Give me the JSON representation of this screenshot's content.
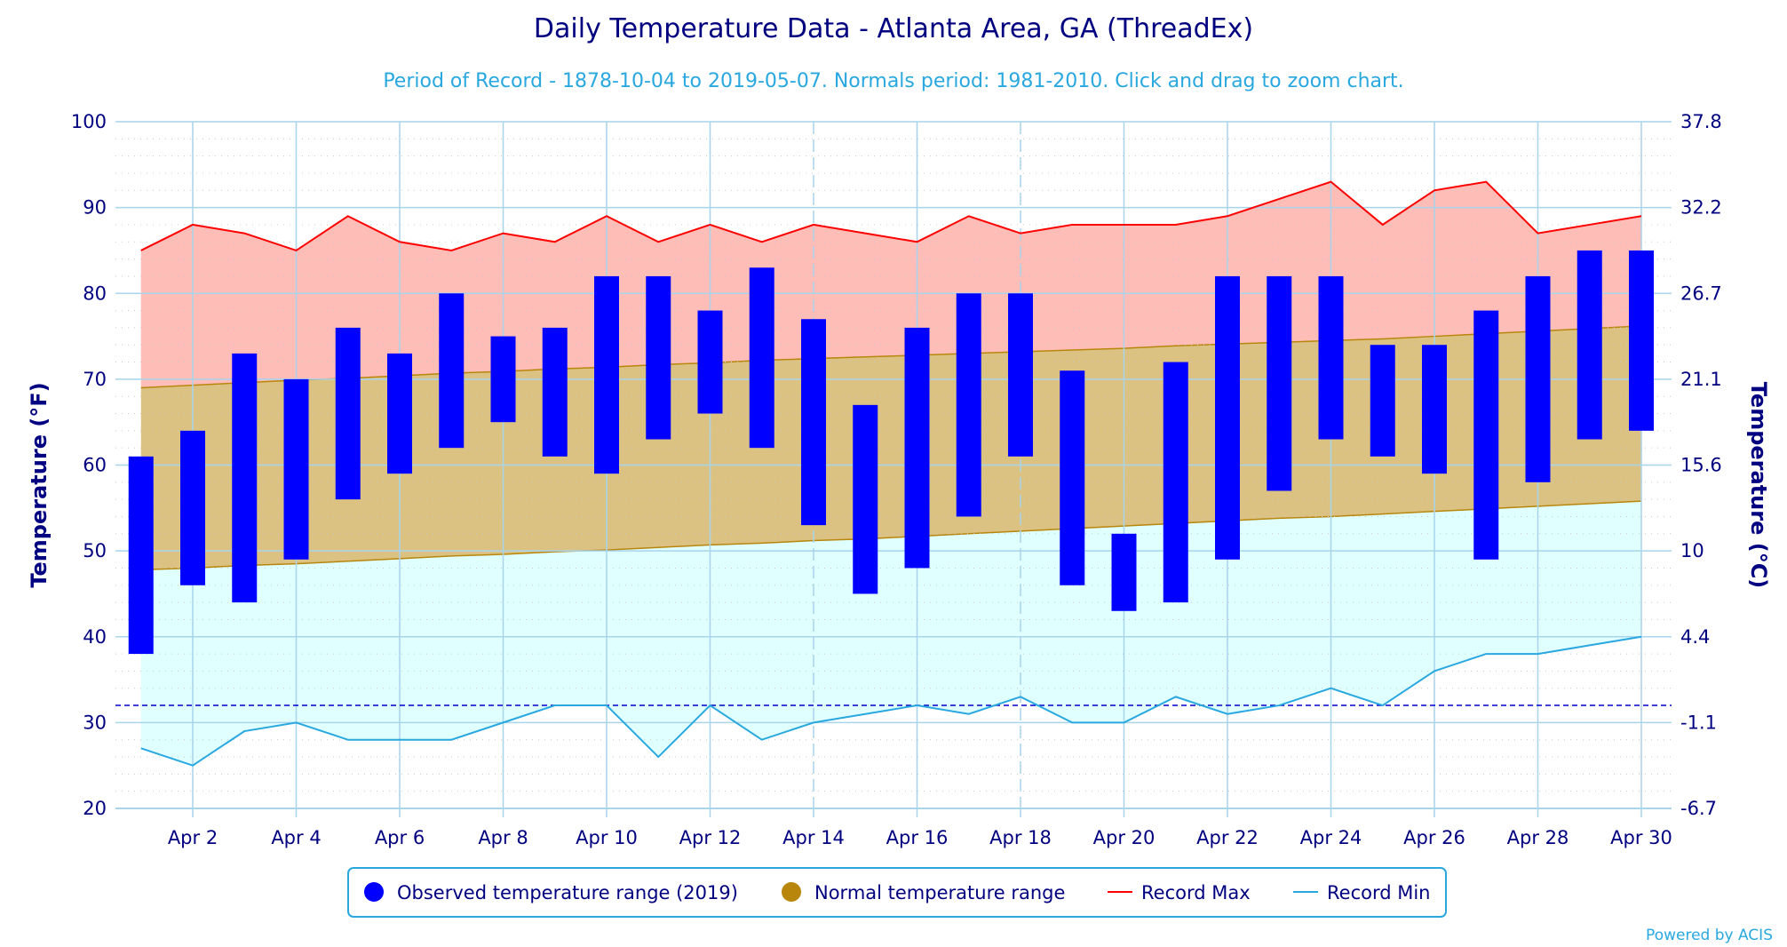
{
  "chart_data": {
    "type": "bar",
    "title": "Daily Temperature Data - Atlanta Area, GA (ThreadEx)",
    "subtitle": "Period of Record - 1878-10-04 to 2019-05-07. Normals period: 1981-2010. Click and drag to zoom chart.",
    "ylabel_left": "Temperature (°F)",
    "ylabel_right": "Temperature (°C)",
    "ylim": [
      20,
      100
    ],
    "xlim": [
      1,
      30
    ],
    "freezing_line": 32,
    "y_ticks_f": [
      20,
      30,
      40,
      50,
      60,
      70,
      80,
      90,
      100
    ],
    "y_ticks_c": [
      "-6.7",
      "-1.1",
      "4.4",
      "10",
      "15.6",
      "21.1",
      "26.7",
      "32.2",
      "37.8"
    ],
    "x_ticks": [
      {
        "day": 2,
        "label": "Apr 2"
      },
      {
        "day": 4,
        "label": "Apr 4"
      },
      {
        "day": 6,
        "label": "Apr 6"
      },
      {
        "day": 8,
        "label": "Apr 8"
      },
      {
        "day": 10,
        "label": "Apr 10"
      },
      {
        "day": 12,
        "label": "Apr 12"
      },
      {
        "day": 14,
        "label": "Apr 14"
      },
      {
        "day": 16,
        "label": "Apr 16"
      },
      {
        "day": 18,
        "label": "Apr 18"
      },
      {
        "day": 20,
        "label": "Apr 20"
      },
      {
        "day": 22,
        "label": "Apr 22"
      },
      {
        "day": 24,
        "label": "Apr 24"
      },
      {
        "day": 26,
        "label": "Apr 26"
      },
      {
        "day": 28,
        "label": "Apr 28"
      },
      {
        "day": 30,
        "label": "Apr 30"
      }
    ],
    "days": [
      1,
      2,
      3,
      4,
      5,
      6,
      7,
      8,
      9,
      10,
      11,
      12,
      13,
      14,
      15,
      16,
      17,
      18,
      19,
      20,
      21,
      22,
      23,
      24,
      25,
      26,
      27,
      28,
      29,
      30
    ],
    "observed": {
      "name": "Observed temperature range (2019)",
      "color": "#0000ff",
      "low": [
        38,
        46,
        44,
        49,
        56,
        59,
        62,
        65,
        61,
        59,
        63,
        66,
        62,
        53,
        45,
        48,
        54,
        61,
        46,
        43,
        44,
        49,
        57,
        63,
        61,
        59,
        49,
        58,
        63,
        64
      ],
      "high": [
        61,
        64,
        73,
        70,
        76,
        73,
        80,
        75,
        76,
        82,
        82,
        78,
        83,
        77,
        67,
        76,
        80,
        80,
        71,
        52,
        72,
        82,
        82,
        82,
        74,
        74,
        78,
        82,
        85,
        85
      ]
    },
    "normal": {
      "name": "Normal temperature range",
      "color": "#b8860b",
      "low": [
        47.8,
        48.0,
        48.3,
        48.5,
        48.8,
        49.1,
        49.4,
        49.6,
        49.9,
        50.1,
        50.4,
        50.7,
        50.9,
        51.2,
        51.4,
        51.7,
        52.0,
        52.3,
        52.6,
        52.9,
        53.2,
        53.5,
        53.8,
        54.0,
        54.3,
        54.6,
        54.9,
        55.2,
        55.5,
        55.8
      ],
      "high": [
        69.0,
        69.3,
        69.6,
        69.9,
        70.1,
        70.4,
        70.7,
        70.9,
        71.2,
        71.4,
        71.7,
        71.9,
        72.2,
        72.4,
        72.6,
        72.8,
        73.0,
        73.2,
        73.4,
        73.6,
        73.9,
        74.1,
        74.3,
        74.5,
        74.7,
        75.0,
        75.3,
        75.6,
        75.9,
        76.2
      ]
    },
    "record_max": {
      "name": "Record Max",
      "color": "#ff0000",
      "values": [
        85,
        88,
        87,
        85,
        89,
        86,
        85,
        87,
        86,
        89,
        86,
        88,
        86,
        88,
        87,
        86,
        89,
        87,
        88,
        88,
        88,
        89,
        91,
        93,
        88,
        92,
        93,
        87,
        88,
        89
      ]
    },
    "record_min": {
      "name": "Record Min",
      "color": "#29a8e0",
      "values": [
        27,
        25,
        29,
        30,
        28,
        28,
        28,
        30,
        32,
        32,
        26,
        32,
        28,
        30,
        31,
        32,
        31,
        33,
        30,
        30,
        33,
        31,
        32,
        34,
        32,
        36,
        38,
        38,
        39,
        40
      ]
    },
    "colors": {
      "above_normal_fill": "#ffbdb8",
      "normal_fill": "#dbc283",
      "below_normal_fill": "#e0ffff",
      "grid": "#a8d4ec",
      "axis_text": "#000080",
      "freezing_line": "#0000cc"
    },
    "legend_position": "bottom-center",
    "credit": "Powered by ACIS"
  }
}
